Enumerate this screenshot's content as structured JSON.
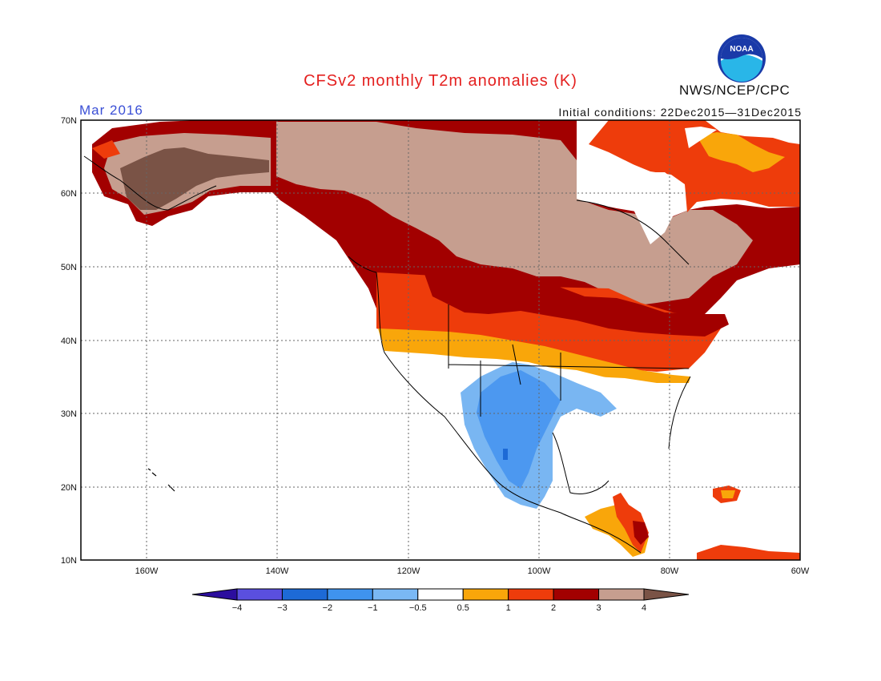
{
  "header": {
    "title": "CFSv2 monthly T2m anomalies (K)",
    "month": "Mar 2016",
    "initial_conditions": "Initial conditions: 22Dec2015—31Dec2015",
    "agency": "NWS/NCEP/CPC",
    "logo_text": "NOAA"
  },
  "map": {
    "lat_labels": [
      "70N",
      "60N",
      "50N",
      "40N",
      "30N",
      "20N",
      "10N"
    ],
    "lon_labels": [
      "160W",
      "140W",
      "120W",
      "100W",
      "80W",
      "60W"
    ],
    "lon_range": [
      -170,
      -60
    ],
    "lat_range": [
      10,
      70
    ],
    "colors": {
      "brown": "#7a5346",
      "tan": "#c69e8f",
      "darkred": "#a20000",
      "red": "#ee3c0b",
      "orange": "#f9a60a",
      "lightblue": "#79b6f2",
      "blue": "#4c98f0",
      "white": "#ffffff"
    }
  },
  "colorbar": {
    "ticks": [
      "−4",
      "−3",
      "−2",
      "−1",
      "−0.5",
      "0.5",
      "1",
      "2",
      "3",
      "4"
    ],
    "colors": [
      "#2c0e9e",
      "#5a4fdf",
      "#1d6ad6",
      "#3f93ee",
      "#7ab8f4",
      "#ffffff",
      "#f9a60a",
      "#ee3c0b",
      "#a20000",
      "#c69e8f",
      "#7a5346"
    ]
  }
}
